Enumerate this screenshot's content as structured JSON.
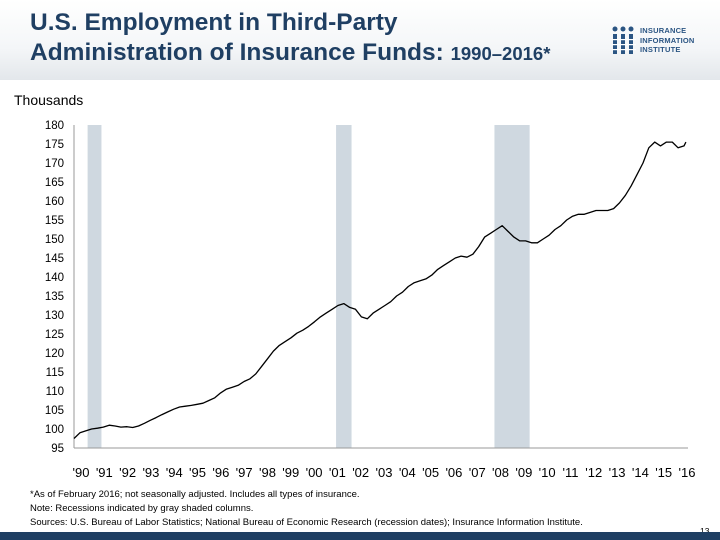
{
  "header": {
    "title_line1": "U.S. Employment in Third-Party",
    "title_line2": "Administration of Insurance Funds: ",
    "title_years": "1990–2016*"
  },
  "logo": {
    "line1": "INSURANCE",
    "line2": "INFORMATION",
    "line3": "INSTITUTE"
  },
  "colors": {
    "title": "#1f3f63",
    "line": "#000000",
    "recession_band": "#cfd8e0",
    "bottom_band": "#1f3f63"
  },
  "chart_data": {
    "type": "line",
    "ylabel": "Thousands",
    "ylim": [
      95,
      180
    ],
    "y_ticks": [
      180,
      175,
      170,
      165,
      160,
      155,
      150,
      145,
      140,
      135,
      130,
      125,
      120,
      115,
      110,
      105,
      100,
      95
    ],
    "x_tick_labels": [
      "'90",
      "'91",
      "'92",
      "'93",
      "'94",
      "'95",
      "'96",
      "'97",
      "'98",
      "'99",
      "'00",
      "'01",
      "'02",
      "'03",
      "'04",
      "'05",
      "'06",
      "'07",
      "'08",
      "'09",
      "'10",
      "'11",
      "'12",
      "'13",
      "'14",
      "'15",
      "'16"
    ],
    "xlim": [
      1990.0,
      2016.17
    ],
    "grid": false,
    "recessions": [
      {
        "start": 1990.58,
        "end": 1991.17
      },
      {
        "start": 2001.17,
        "end": 2001.83
      },
      {
        "start": 2007.92,
        "end": 2009.42
      }
    ],
    "series": [
      {
        "points": [
          [
            1990.0,
            97.5
          ],
          [
            1990.25,
            99.0
          ],
          [
            1990.5,
            99.5
          ],
          [
            1990.75,
            100.0
          ],
          [
            1991.0,
            100.2
          ],
          [
            1991.25,
            100.5
          ],
          [
            1991.5,
            101.0
          ],
          [
            1991.75,
            100.8
          ],
          [
            1992.0,
            100.5
          ],
          [
            1992.25,
            100.6
          ],
          [
            1992.5,
            100.4
          ],
          [
            1992.75,
            100.8
          ],
          [
            1993.0,
            101.5
          ],
          [
            1993.25,
            102.3
          ],
          [
            1993.5,
            103.0
          ],
          [
            1993.75,
            103.8
          ],
          [
            1994.0,
            104.5
          ],
          [
            1994.25,
            105.2
          ],
          [
            1994.5,
            105.8
          ],
          [
            1994.75,
            106.0
          ],
          [
            1995.0,
            106.2
          ],
          [
            1995.25,
            106.5
          ],
          [
            1995.5,
            106.8
          ],
          [
            1995.75,
            107.5
          ],
          [
            1996.0,
            108.2
          ],
          [
            1996.25,
            109.5
          ],
          [
            1996.5,
            110.5
          ],
          [
            1996.75,
            111.0
          ],
          [
            1997.0,
            111.5
          ],
          [
            1997.25,
            112.5
          ],
          [
            1997.5,
            113.2
          ],
          [
            1997.75,
            114.5
          ],
          [
            1998.0,
            116.5
          ],
          [
            1998.25,
            118.5
          ],
          [
            1998.5,
            120.5
          ],
          [
            1998.75,
            122.0
          ],
          [
            1999.0,
            123.0
          ],
          [
            1999.25,
            124.0
          ],
          [
            1999.5,
            125.2
          ],
          [
            1999.75,
            126.0
          ],
          [
            2000.0,
            127.0
          ],
          [
            2000.25,
            128.2
          ],
          [
            2000.5,
            129.5
          ],
          [
            2000.75,
            130.5
          ],
          [
            2001.0,
            131.5
          ],
          [
            2001.25,
            132.5
          ],
          [
            2001.5,
            133.0
          ],
          [
            2001.75,
            132.0
          ],
          [
            2002.0,
            131.5
          ],
          [
            2002.25,
            129.5
          ],
          [
            2002.5,
            129.0
          ],
          [
            2002.75,
            130.5
          ],
          [
            2003.0,
            131.5
          ],
          [
            2003.25,
            132.5
          ],
          [
            2003.5,
            133.5
          ],
          [
            2003.75,
            135.0
          ],
          [
            2004.0,
            136.0
          ],
          [
            2004.25,
            137.5
          ],
          [
            2004.5,
            138.5
          ],
          [
            2004.75,
            139.0
          ],
          [
            2005.0,
            139.5
          ],
          [
            2005.25,
            140.5
          ],
          [
            2005.5,
            142.0
          ],
          [
            2005.75,
            143.0
          ],
          [
            2006.0,
            144.0
          ],
          [
            2006.25,
            145.0
          ],
          [
            2006.5,
            145.5
          ],
          [
            2006.75,
            145.2
          ],
          [
            2007.0,
            146.0
          ],
          [
            2007.25,
            148.0
          ],
          [
            2007.5,
            150.5
          ],
          [
            2007.75,
            151.5
          ],
          [
            2008.0,
            152.5
          ],
          [
            2008.25,
            153.5
          ],
          [
            2008.5,
            152.0
          ],
          [
            2008.75,
            150.5
          ],
          [
            2009.0,
            149.5
          ],
          [
            2009.25,
            149.5
          ],
          [
            2009.5,
            149.0
          ],
          [
            2009.75,
            149.0
          ],
          [
            2010.0,
            150.0
          ],
          [
            2010.25,
            151.0
          ],
          [
            2010.5,
            152.5
          ],
          [
            2010.75,
            153.5
          ],
          [
            2011.0,
            155.0
          ],
          [
            2011.25,
            156.0
          ],
          [
            2011.5,
            156.5
          ],
          [
            2011.75,
            156.5
          ],
          [
            2012.0,
            157.0
          ],
          [
            2012.25,
            157.5
          ],
          [
            2012.5,
            157.5
          ],
          [
            2012.75,
            157.5
          ],
          [
            2013.0,
            158.0
          ],
          [
            2013.25,
            159.5
          ],
          [
            2013.5,
            161.5
          ],
          [
            2013.75,
            164.0
          ],
          [
            2014.0,
            167.0
          ],
          [
            2014.25,
            170.0
          ],
          [
            2014.5,
            174.0
          ],
          [
            2014.75,
            175.5
          ],
          [
            2015.0,
            174.5
          ],
          [
            2015.25,
            175.5
          ],
          [
            2015.5,
            175.5
          ],
          [
            2015.75,
            174.0
          ],
          [
            2016.0,
            174.5
          ],
          [
            2016.08,
            175.5
          ]
        ]
      }
    ]
  },
  "footer": {
    "note1": "*As of February 2016; not seasonally adjusted. Includes all types of insurance.",
    "note2": "Note: Recessions indicated by gray shaded columns.",
    "note3": "Sources: U.S. Bureau of Labor Statistics;  National Bureau of Economic Research (recession dates); Insurance Information Institute.",
    "page_number": "13"
  }
}
